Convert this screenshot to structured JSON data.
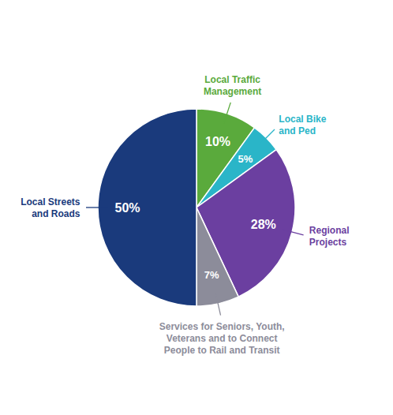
{
  "chart_data": {
    "type": "pie",
    "categories": [
      "Local Traffic\nManagement",
      "Local Bike\nand Ped",
      "Regional\nProjects",
      "Services for Seniors, Youth,\nVeterans and to Connect\nPeople to Rail and Transit",
      "Local Streets\nand Roads"
    ],
    "values": [
      10,
      5,
      28,
      7,
      50
    ],
    "value_labels": [
      "10%",
      "5%",
      "28%",
      "7%",
      "50%"
    ],
    "colors": [
      "#5aaa3c",
      "#2ab5c8",
      "#6b3fa0",
      "#8c8c9a",
      "#1a3a7c"
    ],
    "data_labels": true
  }
}
